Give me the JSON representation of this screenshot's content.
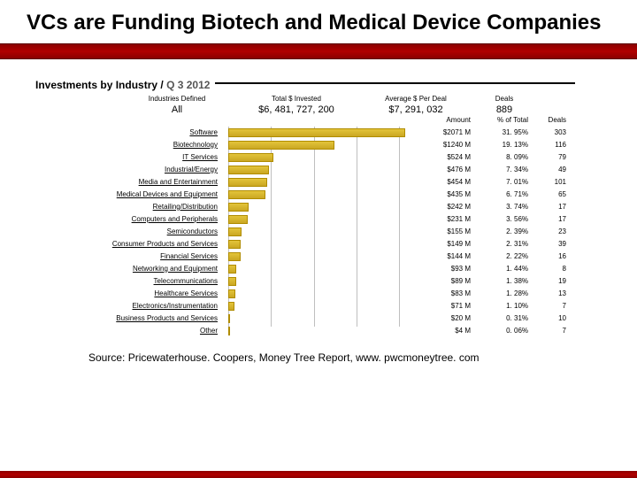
{
  "title": "VCs are Funding Biotech and Medical Device Companies",
  "subtitle_left": "Investments by Industry",
  "subtitle_right": "Q 3 2012",
  "header": {
    "col1_label": "Industries Defined",
    "col1_value": "All",
    "col2_label": "Total $ Invested",
    "col2_value": "$6, 481, 727, 200",
    "col3_label": "Average $ Per Deal",
    "col3_value": "$7, 291, 032",
    "col4_label": "Deals",
    "col4_value": "889"
  },
  "data_headers": {
    "amount": "Amount",
    "pct": "% of Total",
    "deals": "Deals"
  },
  "chart": {
    "type": "bar-horizontal",
    "bar_fill": "#e3c43a",
    "bar_border": "#b08c00",
    "grid_color": "#bfbfbf",
    "max_value": 2071,
    "grid_ticks": [
      0,
      500,
      1000,
      1500,
      2000
    ],
    "rows": [
      {
        "label": "Software",
        "value": 2071,
        "amount": "$2071 M",
        "pct": "31. 95%",
        "deals": "303"
      },
      {
        "label": "Biotechnology",
        "value": 1240,
        "amount": "$1240 M",
        "pct": "19. 13%",
        "deals": "116"
      },
      {
        "label": "IT Services",
        "value": 524,
        "amount": "$524 M",
        "pct": "8. 09%",
        "deals": "79"
      },
      {
        "label": "Industrial/Energy",
        "value": 476,
        "amount": "$476 M",
        "pct": "7. 34%",
        "deals": "49"
      },
      {
        "label": "Media and Entertainment",
        "value": 454,
        "amount": "$454 M",
        "pct": "7. 01%",
        "deals": "101"
      },
      {
        "label": "Medical Devices and Equipment",
        "value": 435,
        "amount": "$435 M",
        "pct": "6. 71%",
        "deals": "65"
      },
      {
        "label": "Retailing/Distribution",
        "value": 242,
        "amount": "$242 M",
        "pct": "3. 74%",
        "deals": "17"
      },
      {
        "label": "Computers and Peripherals",
        "value": 231,
        "amount": "$231 M",
        "pct": "3. 56%",
        "deals": "17"
      },
      {
        "label": "Semiconductors",
        "value": 155,
        "amount": "$155 M",
        "pct": "2. 39%",
        "deals": "23"
      },
      {
        "label": "Consumer Products and Services",
        "value": 149,
        "amount": "$149 M",
        "pct": "2. 31%",
        "deals": "39"
      },
      {
        "label": "Financial Services",
        "value": 144,
        "amount": "$144 M",
        "pct": "2. 22%",
        "deals": "16"
      },
      {
        "label": "Networking and Equipment",
        "value": 93,
        "amount": "$93 M",
        "pct": "1. 44%",
        "deals": "8"
      },
      {
        "label": "Telecommunications",
        "value": 89,
        "amount": "$89 M",
        "pct": "1. 38%",
        "deals": "19"
      },
      {
        "label": "Healthcare Services",
        "value": 83,
        "amount": "$83 M",
        "pct": "1. 28%",
        "deals": "13"
      },
      {
        "label": "Electronics/Instrumentation",
        "value": 71,
        "amount": "$71 M",
        "pct": "1. 10%",
        "deals": "7"
      },
      {
        "label": "Business Products and Services",
        "value": 20,
        "amount": "$20 M",
        "pct": "0. 31%",
        "deals": "10"
      },
      {
        "label": "Other",
        "value": 4,
        "amount": "$4 M",
        "pct": "0. 06%",
        "deals": "7"
      }
    ]
  },
  "source": "Source: Pricewaterhouse. Coopers, Money Tree Report, www. pwcmoneytree. com"
}
